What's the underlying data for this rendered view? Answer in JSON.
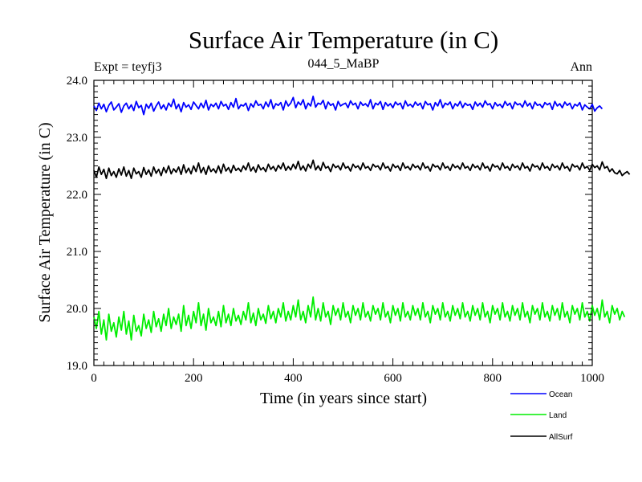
{
  "chart_data": {
    "type": "line",
    "title": "Surface Air Temperature (in C)",
    "subtitle_left": "Expt = teyfj3",
    "subtitle_center": "044_5_MaBP",
    "subtitle_right": "Ann",
    "xlabel": "Time (in years since start)",
    "ylabel": "Surface Air Temperature (in C)",
    "xlim": [
      0,
      1000
    ],
    "ylim": [
      19.0,
      24.0
    ],
    "x_ticks": [
      0,
      200,
      400,
      600,
      800,
      1000
    ],
    "x_tick_labels": [
      "0",
      "200",
      "400",
      "600",
      "800",
      "1000"
    ],
    "y_ticks": [
      19.0,
      20.0,
      21.0,
      22.0,
      23.0,
      24.0
    ],
    "y_tick_labels": [
      "19.0",
      "20.0",
      "21.0",
      "22.0",
      "23.0",
      "24.0"
    ],
    "grid": false,
    "legend_position": "bottom-right",
    "x_start": 0,
    "x_step": 5,
    "series": [
      {
        "name": "Ocean",
        "color": "#0000ff",
        "values": [
          23.55,
          23.47,
          23.6,
          23.5,
          23.58,
          23.45,
          23.56,
          23.62,
          23.48,
          23.53,
          23.59,
          23.44,
          23.55,
          23.6,
          23.5,
          23.57,
          23.47,
          23.63,
          23.52,
          23.56,
          23.4,
          23.58,
          23.51,
          23.6,
          23.46,
          23.55,
          23.62,
          23.5,
          23.57,
          23.48,
          23.6,
          23.54,
          23.67,
          23.5,
          23.58,
          23.45,
          23.61,
          23.53,
          23.57,
          23.49,
          23.62,
          23.56,
          23.5,
          23.6,
          23.52,
          23.65,
          23.48,
          23.58,
          23.54,
          23.6,
          23.5,
          23.63,
          23.55,
          23.58,
          23.49,
          23.61,
          23.53,
          23.68,
          23.5,
          23.57,
          23.55,
          23.6,
          23.47,
          23.59,
          23.53,
          23.64,
          23.56,
          23.58,
          23.5,
          23.62,
          23.54,
          23.66,
          23.5,
          23.59,
          23.56,
          23.61,
          23.48,
          23.64,
          23.55,
          23.6,
          23.7,
          23.52,
          23.62,
          23.57,
          23.66,
          23.5,
          23.6,
          23.55,
          23.72,
          23.53,
          23.6,
          23.58,
          23.65,
          23.5,
          23.62,
          23.56,
          23.59,
          23.48,
          23.63,
          23.55,
          23.58,
          23.6,
          23.52,
          23.64,
          23.57,
          23.6,
          23.5,
          23.62,
          23.56,
          23.59,
          23.54,
          23.66,
          23.5,
          23.6,
          23.57,
          23.63,
          23.49,
          23.61,
          23.55,
          23.59,
          23.52,
          23.62,
          23.57,
          23.6,
          23.5,
          23.64,
          23.55,
          23.58,
          23.53,
          23.62,
          23.56,
          23.6,
          23.5,
          23.63,
          23.57,
          23.59,
          23.48,
          23.61,
          23.55,
          23.66,
          23.52,
          23.6,
          23.57,
          23.62,
          23.5,
          23.59,
          23.55,
          23.63,
          23.52,
          23.6,
          23.56,
          23.58,
          23.49,
          23.62,
          23.55,
          23.6,
          23.53,
          23.64,
          23.57,
          23.59,
          23.5,
          23.61,
          23.55,
          23.58,
          23.52,
          23.63,
          23.56,
          23.6,
          23.5,
          23.62,
          23.57,
          23.59,
          23.53,
          23.64,
          23.55,
          23.6,
          23.5,
          23.62,
          23.56,
          23.58,
          23.52,
          23.61,
          23.57,
          23.6,
          23.49,
          23.63,
          23.55,
          23.59,
          23.52,
          23.62,
          23.56,
          23.6,
          23.5,
          23.58,
          23.55,
          23.61,
          23.48,
          23.57,
          23.53,
          23.5,
          23.58,
          23.46,
          23.52,
          23.55,
          23.5
        ]
      },
      {
        "name": "Land",
        "color": "#00ee00",
        "values": [
          19.85,
          19.65,
          19.95,
          19.55,
          19.8,
          19.45,
          19.9,
          19.6,
          19.75,
          19.5,
          19.85,
          19.62,
          19.95,
          19.55,
          19.78,
          19.45,
          19.88,
          19.6,
          19.7,
          19.52,
          19.9,
          19.65,
          19.8,
          19.58,
          19.95,
          19.68,
          19.82,
          19.6,
          19.9,
          19.7,
          20.0,
          19.65,
          19.85,
          19.72,
          19.9,
          19.6,
          20.05,
          19.7,
          19.88,
          19.65,
          19.95,
          19.75,
          20.1,
          19.7,
          19.9,
          19.62,
          20.0,
          19.75,
          19.85,
          19.7,
          19.95,
          19.68,
          20.05,
          19.75,
          19.9,
          19.7,
          20.0,
          19.78,
          19.88,
          19.72,
          19.95,
          19.8,
          20.1,
          19.75,
          19.92,
          19.7,
          20.0,
          19.8,
          19.9,
          19.74,
          20.05,
          19.82,
          19.95,
          19.75,
          20.0,
          19.85,
          20.1,
          19.78,
          19.95,
          19.8,
          20.05,
          19.85,
          20.15,
          19.8,
          19.95,
          19.75,
          20.05,
          19.85,
          20.2,
          19.8,
          20.0,
          19.78,
          20.1,
          19.85,
          19.95,
          19.72,
          20.05,
          19.88,
          20.0,
          19.8,
          20.1,
          19.85,
          19.95,
          19.75,
          20.05,
          19.88,
          20.0,
          19.8,
          20.1,
          19.85,
          19.95,
          19.78,
          20.05,
          19.9,
          20.0,
          19.8,
          20.1,
          19.85,
          19.95,
          19.75,
          20.05,
          19.88,
          20.0,
          19.78,
          20.1,
          19.85,
          19.95,
          19.8,
          20.05,
          19.88,
          20.0,
          19.8,
          20.1,
          19.85,
          19.95,
          19.75,
          20.05,
          19.9,
          20.0,
          19.8,
          20.1,
          19.85,
          19.95,
          19.78,
          20.05,
          19.88,
          20.0,
          19.82,
          20.1,
          19.85,
          19.95,
          19.78,
          20.05,
          19.88,
          20.0,
          19.8,
          20.1,
          19.85,
          19.95,
          19.75,
          20.05,
          19.9,
          20.0,
          19.8,
          20.1,
          19.85,
          19.95,
          19.78,
          20.05,
          19.88,
          20.0,
          19.8,
          20.1,
          19.85,
          19.95,
          19.75,
          20.05,
          19.9,
          20.0,
          19.8,
          20.1,
          19.85,
          19.95,
          19.78,
          20.05,
          19.88,
          20.0,
          19.8,
          20.1,
          19.85,
          19.95,
          19.75,
          20.05,
          19.9,
          20.0,
          19.8,
          20.1,
          19.85,
          19.95,
          19.78,
          20.05,
          19.88,
          20.0,
          19.8,
          20.15,
          19.85,
          19.95,
          19.75,
          20.05,
          19.9,
          20.0,
          19.8,
          19.95,
          19.85
        ]
      },
      {
        "name": "AllSurf",
        "color": "#000000",
        "values": [
          22.42,
          22.3,
          22.48,
          22.35,
          22.44,
          22.28,
          22.46,
          22.33,
          22.4,
          22.3,
          22.45,
          22.34,
          22.48,
          22.32,
          22.42,
          22.28,
          22.46,
          22.36,
          22.4,
          22.3,
          22.47,
          22.35,
          22.43,
          22.32,
          22.48,
          22.37,
          22.44,
          22.33,
          22.47,
          22.38,
          22.5,
          22.36,
          22.45,
          22.39,
          22.48,
          22.35,
          22.52,
          22.38,
          22.46,
          22.36,
          22.5,
          22.4,
          22.55,
          22.38,
          22.47,
          22.35,
          22.5,
          22.4,
          22.45,
          22.38,
          22.5,
          22.37,
          22.53,
          22.41,
          22.47,
          22.38,
          22.51,
          22.42,
          22.46,
          22.4,
          22.5,
          22.43,
          22.55,
          22.41,
          22.48,
          22.39,
          22.52,
          22.43,
          22.47,
          22.4,
          22.53,
          22.44,
          22.49,
          22.41,
          22.51,
          22.45,
          22.55,
          22.42,
          22.49,
          22.43,
          22.53,
          22.45,
          22.58,
          22.43,
          22.5,
          22.41,
          22.53,
          22.46,
          22.6,
          22.43,
          22.5,
          22.42,
          22.56,
          22.46,
          22.49,
          22.4,
          22.53,
          22.47,
          22.5,
          22.43,
          22.55,
          22.46,
          22.49,
          22.41,
          22.53,
          22.47,
          22.5,
          22.43,
          22.55,
          22.46,
          22.49,
          22.42,
          22.53,
          22.48,
          22.5,
          22.43,
          22.55,
          22.46,
          22.49,
          22.41,
          22.53,
          22.47,
          22.5,
          22.42,
          22.55,
          22.46,
          22.49,
          22.43,
          22.53,
          22.47,
          22.5,
          22.43,
          22.55,
          22.46,
          22.49,
          22.41,
          22.53,
          22.48,
          22.5,
          22.43,
          22.55,
          22.46,
          22.49,
          22.42,
          22.53,
          22.47,
          22.5,
          22.44,
          22.55,
          22.46,
          22.49,
          22.42,
          22.53,
          22.47,
          22.5,
          22.43,
          22.55,
          22.46,
          22.49,
          22.41,
          22.53,
          22.48,
          22.5,
          22.43,
          22.55,
          22.46,
          22.49,
          22.42,
          22.53,
          22.47,
          22.5,
          22.43,
          22.55,
          22.46,
          22.49,
          22.41,
          22.53,
          22.48,
          22.5,
          22.43,
          22.55,
          22.46,
          22.49,
          22.42,
          22.53,
          22.47,
          22.5,
          22.43,
          22.55,
          22.46,
          22.49,
          22.41,
          22.53,
          22.48,
          22.5,
          22.43,
          22.55,
          22.46,
          22.49,
          22.42,
          22.53,
          22.47,
          22.5,
          22.43,
          22.57,
          22.46,
          22.49,
          22.4,
          22.45,
          22.38,
          22.36,
          22.42,
          22.33,
          22.37,
          22.4,
          22.35
        ]
      }
    ]
  }
}
